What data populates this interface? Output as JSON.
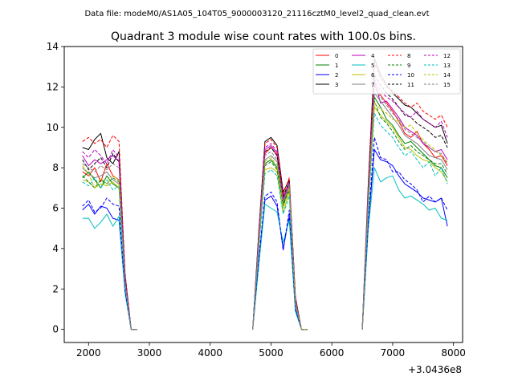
{
  "figure": {
    "suptitle": "Data file: modeM0/AS1A05_104T05_9000003120_21116cztM0_level2_quad_clean.evt"
  },
  "chart_data": {
    "type": "line",
    "title": "Quadrant 3 module wise count rates with 100.0s bins.",
    "xlabel": "",
    "ylabel": "",
    "x_offset_label": "+3.0436e8",
    "xlim": [
      1600,
      8150
    ],
    "ylim": [
      -0.65,
      14
    ],
    "xticks": [
      2000,
      3000,
      4000,
      5000,
      6000,
      7000,
      8000
    ],
    "yticks": [
      0,
      2,
      4,
      6,
      8,
      10,
      12,
      14
    ],
    "grid": false,
    "legend_position": "top-right",
    "legend_columns": 4,
    "segments": [
      {
        "x": [
          1900,
          2000,
          2100,
          2200,
          2300,
          2400,
          2500,
          2600,
          2700,
          2800
        ]
      },
      {
        "x": [
          4700,
          4800,
          4900,
          5000,
          5100,
          5200,
          5300,
          5400,
          5500,
          5600
        ]
      },
      {
        "x": [
          6500,
          6600,
          6700,
          6800,
          6900,
          7000,
          7100,
          7200,
          7300,
          7400,
          7500,
          7600,
          7700,
          7800,
          7900
        ]
      }
    ],
    "series": [
      {
        "name": "0",
        "color": "#ff0000",
        "dash": "solid",
        "segments": [
          [
            7.8,
            7.6,
            8.0,
            7.3,
            8.2,
            7.6,
            7.4,
            2.5,
            0,
            0
          ],
          [
            0,
            4.5,
            8.7,
            9.0,
            8.6,
            6.5,
            7.3,
            1.5,
            0,
            0
          ],
          [
            0,
            6.5,
            12.1,
            11.6,
            11.2,
            10.8,
            10.3,
            9.7,
            9.5,
            9.8,
            9.2,
            8.9,
            8.5,
            8.6,
            8.1
          ]
        ]
      },
      {
        "name": "1",
        "color": "#008000",
        "dash": "solid",
        "segments": [
          [
            7.5,
            7.8,
            7.4,
            7.0,
            7.6,
            7.2,
            7.0,
            2.2,
            0,
            0
          ],
          [
            0,
            4.3,
            8.2,
            8.4,
            8.0,
            6.2,
            7.0,
            1.3,
            0,
            0
          ],
          [
            0,
            6.4,
            11.5,
            11.0,
            10.4,
            10.1,
            9.6,
            9.2,
            9.3,
            9.0,
            8.7,
            8.4,
            8.1,
            8.0,
            7.5
          ]
        ]
      },
      {
        "name": "2",
        "color": "#0000ff",
        "dash": "solid",
        "segments": [
          [
            5.9,
            6.2,
            5.7,
            6.1,
            6.0,
            5.5,
            5.4,
            1.9,
            0,
            0
          ],
          [
            0,
            3.4,
            6.4,
            6.6,
            6.1,
            4.0,
            5.6,
            1.0,
            0,
            0
          ],
          [
            0,
            5.2,
            8.9,
            8.4,
            8.3,
            8.1,
            7.6,
            7.2,
            7.0,
            6.8,
            6.5,
            6.4,
            6.3,
            6.5,
            5.1
          ]
        ]
      },
      {
        "name": "3",
        "color": "#000000",
        "dash": "solid",
        "segments": [
          [
            9.0,
            8.9,
            9.4,
            9.7,
            8.5,
            8.2,
            8.8,
            2.7,
            0,
            0
          ],
          [
            0,
            4.9,
            9.3,
            9.5,
            9.1,
            6.8,
            7.4,
            1.6,
            0,
            0
          ],
          [
            0,
            7.2,
            13.4,
            12.6,
            12.1,
            11.7,
            11.4,
            11.1,
            11.0,
            10.7,
            10.4,
            10.2,
            10.0,
            10.1,
            9.2
          ]
        ]
      },
      {
        "name": "4",
        "color": "#bf00bf",
        "dash": "solid",
        "segments": [
          [
            8.6,
            8.1,
            8.4,
            8.2,
            8.4,
            8.6,
            8.3,
            2.6,
            0,
            0
          ],
          [
            0,
            4.7,
            8.9,
            9.1,
            8.7,
            6.4,
            7.2,
            1.5,
            0,
            0
          ],
          [
            0,
            6.9,
            12.3,
            11.2,
            11.3,
            10.9,
            10.5,
            10.0,
            9.8,
            9.6,
            9.2,
            9.0,
            8.8,
            8.9,
            8.4
          ]
        ]
      },
      {
        "name": "5",
        "color": "#00bfbf",
        "dash": "solid",
        "segments": [
          [
            5.5,
            5.5,
            5.0,
            5.3,
            5.7,
            5.1,
            5.6,
            1.8,
            0,
            0
          ],
          [
            0,
            3.2,
            6.2,
            6.0,
            5.8,
            4.3,
            5.4,
            0.9,
            0,
            0
          ],
          [
            0,
            5.0,
            8.0,
            7.3,
            7.5,
            7.6,
            6.9,
            6.5,
            6.6,
            6.4,
            6.2,
            5.9,
            6.0,
            5.5,
            5.4
          ]
        ]
      },
      {
        "name": "6",
        "color": "#bfbf00",
        "dash": "solid",
        "segments": [
          [
            7.4,
            7.3,
            7.0,
            7.2,
            7.1,
            7.3,
            7.0,
            2.1,
            0,
            0
          ],
          [
            0,
            4.1,
            7.9,
            8.0,
            7.8,
            5.8,
            6.8,
            1.2,
            0,
            0
          ],
          [
            0,
            6.1,
            11.0,
            10.6,
            10.3,
            10.0,
            9.5,
            9.0,
            8.9,
            8.6,
            8.4,
            8.3,
            8.0,
            7.8,
            7.3
          ]
        ]
      },
      {
        "name": "7",
        "color": "#808080",
        "dash": "solid",
        "segments": [
          [
            8.0,
            7.7,
            7.5,
            7.6,
            7.8,
            7.4,
            7.2,
            2.3,
            0,
            0
          ],
          [
            0,
            4.4,
            8.4,
            8.6,
            8.3,
            6.3,
            7.1,
            1.4,
            0,
            0
          ],
          [
            0,
            6.6,
            11.7,
            11.3,
            10.9,
            10.5,
            10.1,
            9.6,
            9.4,
            9.2,
            8.9,
            8.6,
            8.5,
            8.4,
            7.9
          ]
        ]
      },
      {
        "name": "8",
        "color": "#ff0000",
        "dash": "dashed",
        "segments": [
          [
            9.3,
            9.5,
            9.2,
            9.4,
            9.0,
            9.6,
            9.3,
            2.8,
            0,
            0
          ],
          [
            0,
            4.8,
            9.2,
            9.4,
            9.0,
            6.7,
            7.5,
            1.6,
            0,
            0
          ],
          [
            0,
            7.3,
            13.2,
            12.4,
            12.0,
            11.8,
            11.5,
            11.2,
            11.0,
            11.2,
            10.8,
            10.6,
            10.4,
            10.6,
            10.0
          ]
        ]
      },
      {
        "name": "9",
        "color": "#008000",
        "dash": "dashed",
        "segments": [
          [
            7.6,
            7.3,
            7.0,
            7.4,
            7.2,
            7.5,
            7.3,
            2.2,
            0,
            0
          ],
          [
            0,
            4.2,
            8.1,
            8.3,
            7.9,
            6.1,
            6.9,
            1.3,
            0,
            0
          ],
          [
            0,
            6.3,
            11.3,
            10.5,
            10.2,
            9.8,
            9.3,
            8.9,
            9.1,
            8.8,
            8.6,
            8.4,
            8.2,
            8.2,
            7.7
          ]
        ]
      },
      {
        "name": "10",
        "color": "#0000ff",
        "dash": "dashed",
        "segments": [
          [
            6.1,
            6.4,
            5.8,
            6.0,
            6.5,
            6.2,
            6.1,
            1.9,
            0,
            0
          ],
          [
            0,
            3.5,
            6.6,
            6.8,
            6.3,
            3.9,
            5.9,
            1.0,
            0,
            0
          ],
          [
            0,
            5.3,
            9.5,
            8.5,
            8.4,
            7.8,
            7.8,
            7.4,
            7.2,
            6.9,
            6.3,
            6.6,
            6.3,
            6.5,
            5.9
          ]
        ]
      },
      {
        "name": "11",
        "color": "#000000",
        "dash": "dashed",
        "segments": [
          [
            8.4,
            7.9,
            8.2,
            8.5,
            8.0,
            8.7,
            8.3,
            2.6,
            0,
            0
          ],
          [
            0,
            4.6,
            8.8,
            9.0,
            8.6,
            6.6,
            7.3,
            1.5,
            0,
            0
          ],
          [
            0,
            7.0,
            12.6,
            12.1,
            11.7,
            11.4,
            11.0,
            10.6,
            10.5,
            10.2,
            10.0,
            9.8,
            9.5,
            9.6,
            9.0
          ]
        ]
      },
      {
        "name": "12",
        "color": "#bf00bf",
        "dash": "dashed",
        "segments": [
          [
            8.8,
            8.5,
            8.9,
            8.6,
            8.2,
            8.9,
            8.5,
            2.6,
            0,
            0
          ],
          [
            0,
            4.7,
            9.0,
            9.2,
            8.8,
            6.5,
            7.3,
            1.5,
            0,
            0
          ],
          [
            0,
            7.0,
            12.4,
            11.8,
            11.5,
            11.3,
            11.0,
            10.7,
            10.5,
            10.8,
            10.4,
            10.2,
            10.0,
            10.3,
            9.5
          ]
        ]
      },
      {
        "name": "13",
        "color": "#00bfbf",
        "dash": "dashed",
        "segments": [
          [
            7.3,
            7.1,
            7.5,
            7.0,
            7.4,
            6.9,
            7.1,
            2.1,
            0,
            0
          ],
          [
            0,
            4.0,
            7.7,
            7.9,
            7.6,
            5.7,
            6.6,
            1.2,
            0,
            0
          ],
          [
            0,
            6.0,
            10.7,
            10.1,
            9.8,
            9.5,
            9.0,
            8.6,
            8.8,
            8.4,
            8.0,
            8.3,
            7.6,
            8.0,
            7.2
          ]
        ]
      },
      {
        "name": "14",
        "color": "#bfbf00",
        "dash": "dashed",
        "segments": [
          [
            8.1,
            7.7,
            7.0,
            7.5,
            7.2,
            7.6,
            7.4,
            2.3,
            0,
            0
          ],
          [
            0,
            4.3,
            8.3,
            8.5,
            8.1,
            6.0,
            7.0,
            1.3,
            0,
            0
          ],
          [
            0,
            6.5,
            11.2,
            10.9,
            10.7,
            10.4,
            10.3,
            10.0,
            10.1,
            9.7,
            9.4,
            9.1,
            8.9,
            8.6,
            8.3
          ]
        ]
      },
      {
        "name": "15",
        "color": "#808080",
        "dash": "dashed",
        "segments": [
          [
            8.2,
            8.0,
            7.8,
            8.1,
            7.9,
            8.2,
            8.0,
            2.4,
            0,
            0
          ],
          [
            0,
            4.5,
            8.6,
            8.8,
            8.4,
            6.3,
            7.2,
            1.4,
            0,
            0
          ],
          [
            0,
            6.7,
            12.0,
            11.5,
            11.1,
            10.7,
            10.4,
            9.9,
            9.7,
            9.5,
            9.3,
            9.0,
            8.8,
            8.7,
            8.2
          ]
        ]
      }
    ]
  }
}
